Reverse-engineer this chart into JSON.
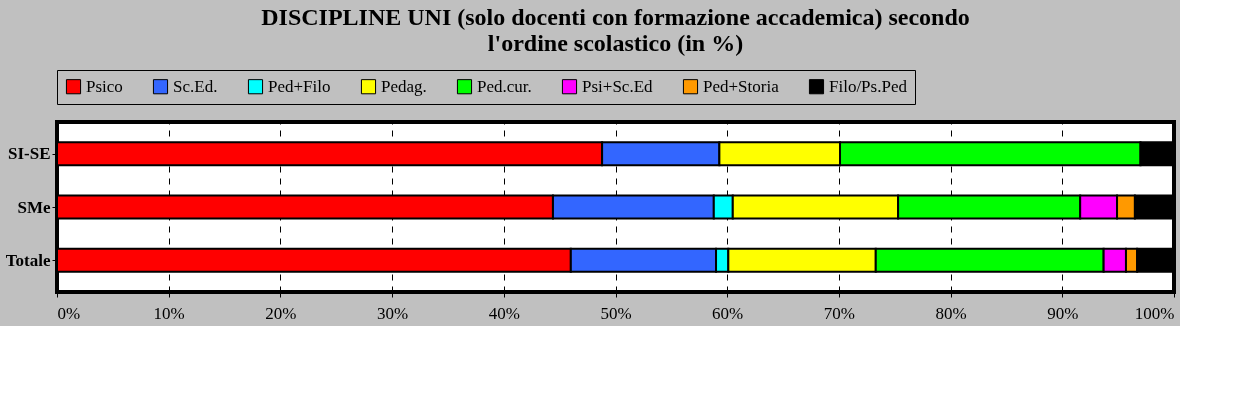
{
  "chart_data": {
    "type": "bar",
    "orientation": "horizontal",
    "stacked": true,
    "title": "DISCIPLINE UNI  (solo docenti con formazione accademica)  secondo\nl'ordine scolastico  (in %)",
    "categories": [
      "SI-SE",
      "SMe",
      "Totale"
    ],
    "series": [
      {
        "name": "Psico",
        "color": "#ff0000",
        "values": [
          48.8,
          44.4,
          46.0
        ]
      },
      {
        "name": "Sc.Ed.",
        "color": "#3366ff",
        "values": [
          10.5,
          14.4,
          13.0
        ]
      },
      {
        "name": "Ped+Filo",
        "color": "#00ffff",
        "values": [
          null,
          1.7,
          1.1
        ]
      },
      {
        "name": "Pedag.",
        "color": "#ffff00",
        "values": [
          10.8,
          14.8,
          13.2
        ]
      },
      {
        "name": "Ped.cur.",
        "color": "#00ff00",
        "values": [
          26.9,
          16.3,
          20.4
        ]
      },
      {
        "name": "Psi+Sc.Ed",
        "color": "#ff00ff",
        "values": [
          null,
          3.3,
          2.0
        ]
      },
      {
        "name": "Ped+Storia",
        "color": "#ff9900",
        "values": [
          null,
          1.6,
          1.0
        ]
      },
      {
        "name": "Filo/Ps.Ped",
        "color": "#000000",
        "values": [
          3.0,
          3.5,
          3.3
        ]
      }
    ],
    "xlim": [
      0,
      100
    ],
    "xticks": [
      {
        "value": 0,
        "label": "0%"
      },
      {
        "value": 10,
        "label": "10%"
      },
      {
        "value": 20,
        "label": "20%"
      },
      {
        "value": 30,
        "label": "30%"
      },
      {
        "value": 40,
        "label": "40%"
      },
      {
        "value": 50,
        "label": "50%"
      },
      {
        "value": 60,
        "label": "60%"
      },
      {
        "value": 70,
        "label": "70%"
      },
      {
        "value": 80,
        "label": "80%"
      },
      {
        "value": 90,
        "label": "90%"
      },
      {
        "value": 100,
        "label": "100%"
      }
    ],
    "grid": "x",
    "legend": "top"
  }
}
